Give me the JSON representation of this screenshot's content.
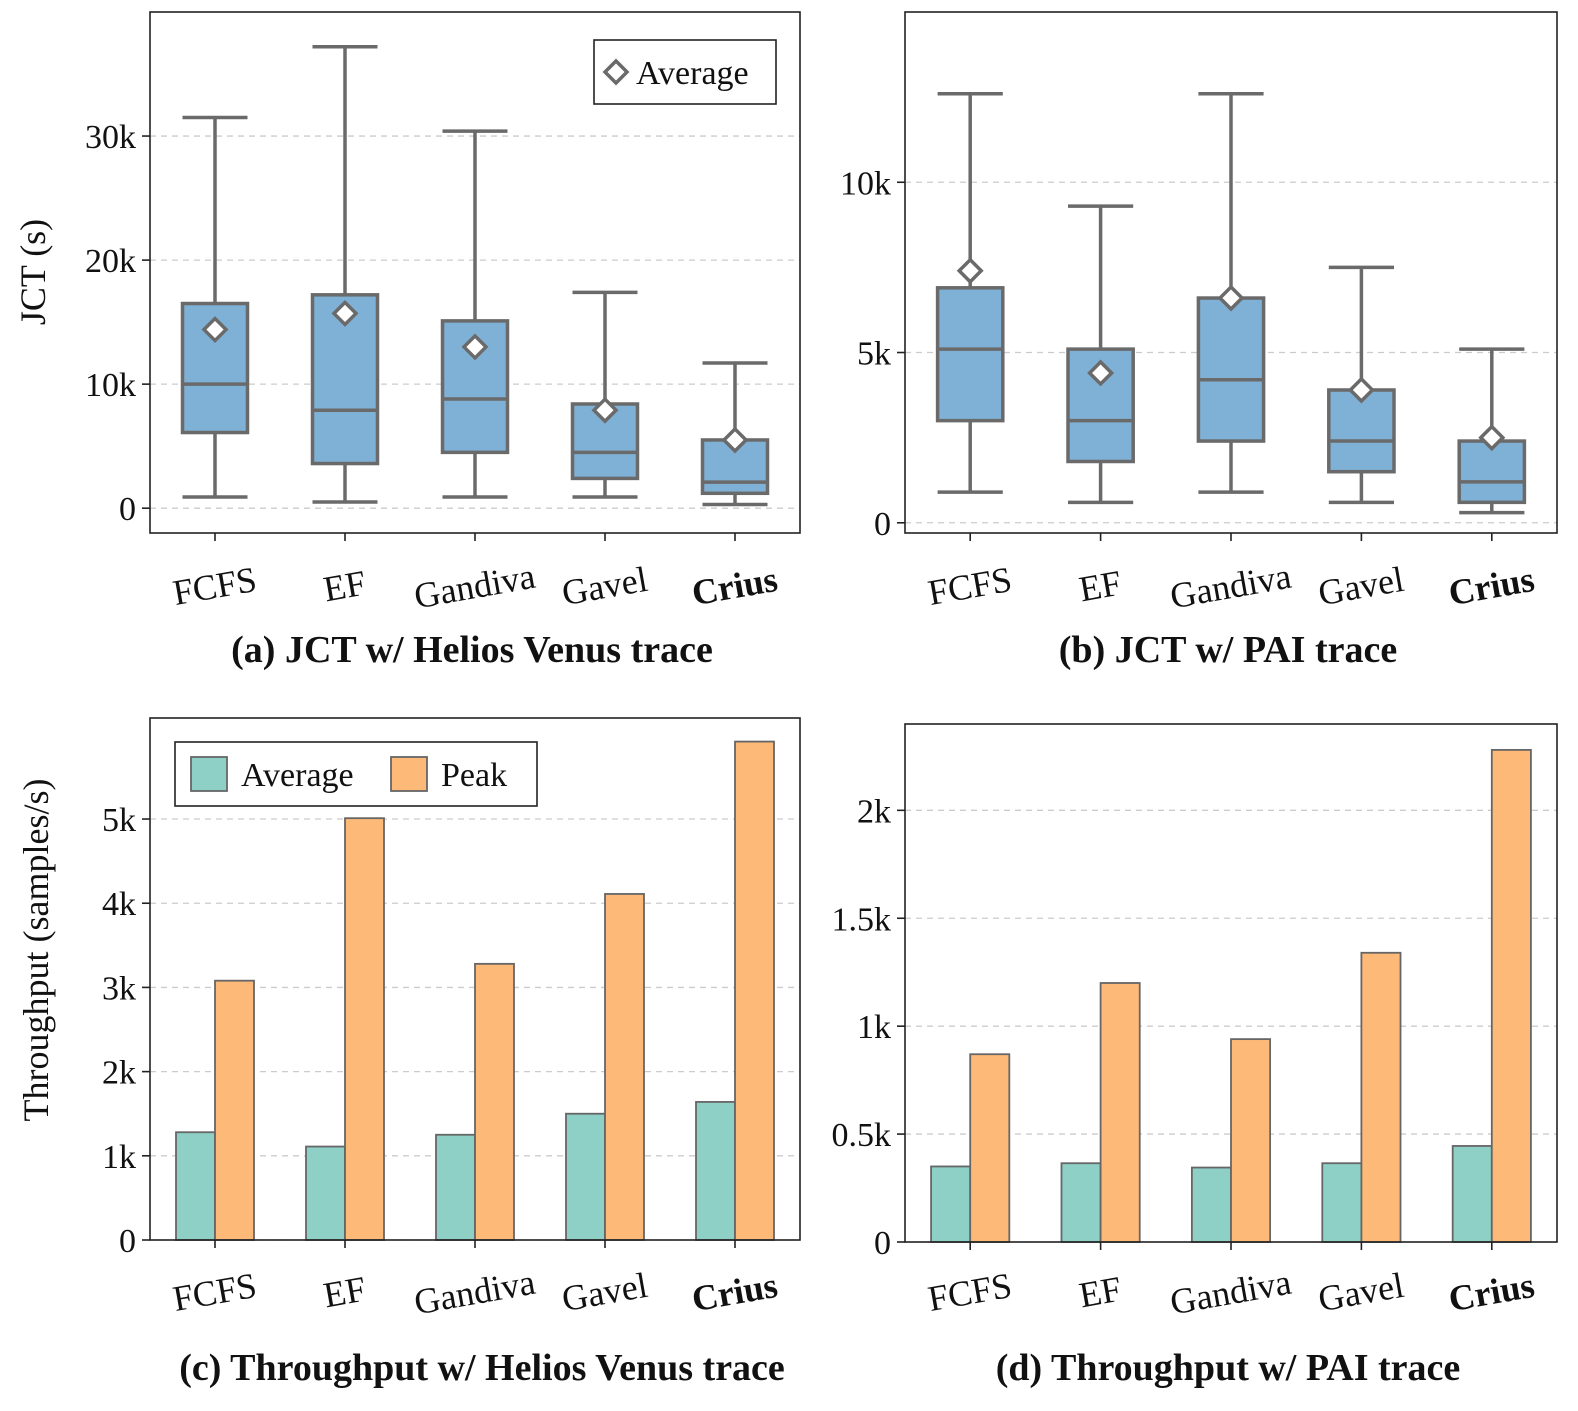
{
  "colors": {
    "box_fill": "#7fb0d5",
    "box_edge": "#6a6a6a",
    "avg_bar": "#8ecfc6",
    "peak_bar": "#fdb978",
    "grid": "#cccccc"
  },
  "chart_data": [
    {
      "id": "a",
      "type": "box",
      "caption": "(a) JCT w/ Helios Venus trace",
      "ylabel": "JCT (s)",
      "ylim": [
        -2000,
        40000
      ],
      "yticks": [
        0,
        10000,
        20000,
        30000
      ],
      "ytick_labels": [
        "0",
        "10k",
        "20k",
        "30k"
      ],
      "categories": [
        "FCFS",
        "EF",
        "Gandiva",
        "Gavel",
        "Crius"
      ],
      "bold_category": "Crius",
      "legend": {
        "label": "Average",
        "position": "top-right"
      },
      "boxes": [
        {
          "whislo": 900,
          "q1": 6100,
          "med": 10000,
          "q3": 16500,
          "whishi": 31500,
          "mean": 14400
        },
        {
          "whislo": 500,
          "q1": 3600,
          "med": 7900,
          "q3": 17200,
          "whishi": 37200,
          "mean": 15700
        },
        {
          "whislo": 900,
          "q1": 4500,
          "med": 8800,
          "q3": 15100,
          "whishi": 30400,
          "mean": 13000
        },
        {
          "whislo": 900,
          "q1": 2400,
          "med": 4500,
          "q3": 8400,
          "whishi": 17400,
          "mean": 7900
        },
        {
          "whislo": 300,
          "q1": 1200,
          "med": 2100,
          "q3": 5500,
          "whishi": 11700,
          "mean": 5500
        }
      ]
    },
    {
      "id": "b",
      "type": "box",
      "caption": "(b) JCT w/ PAI trace",
      "ylabel": "",
      "ylim": [
        -300,
        15000
      ],
      "yticks": [
        0,
        5000,
        10000
      ],
      "ytick_labels": [
        "0",
        "5k",
        "10k"
      ],
      "categories": [
        "FCFS",
        "EF",
        "Gandiva",
        "Gavel",
        "Crius"
      ],
      "bold_category": "Crius",
      "boxes": [
        {
          "whislo": 900,
          "q1": 3000,
          "med": 5100,
          "q3": 6900,
          "whishi": 12600,
          "mean": 7400
        },
        {
          "whislo": 600,
          "q1": 1800,
          "med": 3000,
          "q3": 5100,
          "whishi": 9300,
          "mean": 4400
        },
        {
          "whislo": 900,
          "q1": 2400,
          "med": 4200,
          "q3": 6600,
          "whishi": 12600,
          "mean": 6600
        },
        {
          "whislo": 600,
          "q1": 1500,
          "med": 2400,
          "q3": 3900,
          "whishi": 7500,
          "mean": 3900
        },
        {
          "whislo": 300,
          "q1": 600,
          "med": 1200,
          "q3": 2400,
          "whishi": 5100,
          "mean": 2500
        }
      ]
    },
    {
      "id": "c",
      "type": "bar",
      "caption": "(c) Throughput w/ Helios Venus trace",
      "ylabel": "Throughput (samples/s)",
      "ylim": [
        0,
        6200
      ],
      "yticks": [
        0,
        1000,
        2000,
        3000,
        4000,
        5000
      ],
      "ytick_labels": [
        "0",
        "1k",
        "2k",
        "3k",
        "4k",
        "5k"
      ],
      "categories": [
        "FCFS",
        "EF",
        "Gandiva",
        "Gavel",
        "Crius"
      ],
      "bold_category": "Crius",
      "legend_position": "top-left",
      "series": [
        {
          "name": "Average",
          "values": [
            1280,
            1110,
            1250,
            1500,
            1640
          ]
        },
        {
          "name": "Peak",
          "values": [
            3080,
            5010,
            3280,
            4110,
            5920
          ]
        }
      ]
    },
    {
      "id": "d",
      "type": "bar",
      "caption": "(d) Throughput w/ PAI trace",
      "ylabel": "",
      "ylim": [
        0,
        2400
      ],
      "yticks": [
        0,
        500,
        1000,
        1500,
        2000
      ],
      "ytick_labels": [
        "0",
        "0.5k",
        "1k",
        "1.5k",
        "2k"
      ],
      "categories": [
        "FCFS",
        "EF",
        "Gandiva",
        "Gavel",
        "Crius"
      ],
      "bold_category": "Crius",
      "series": [
        {
          "name": "Average",
          "values": [
            350,
            365,
            345,
            365,
            445
          ]
        },
        {
          "name": "Peak",
          "values": [
            870,
            1200,
            940,
            1340,
            2280
          ]
        }
      ]
    }
  ]
}
